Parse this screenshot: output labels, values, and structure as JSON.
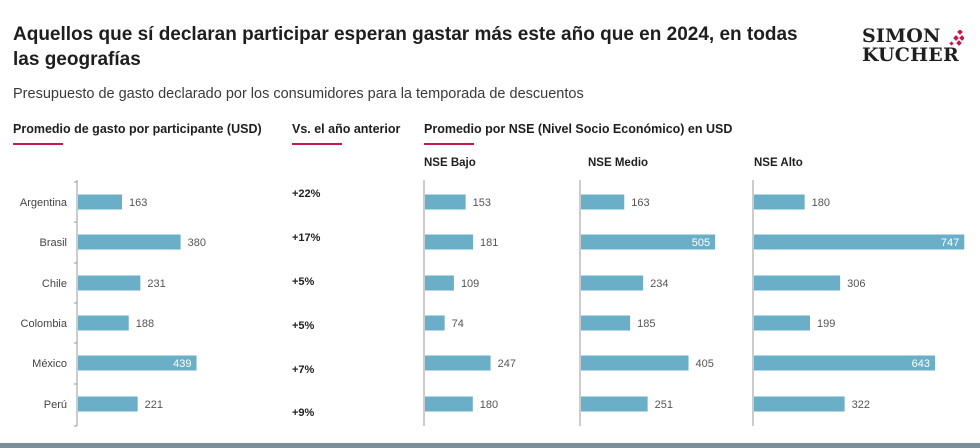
{
  "header": {
    "title": "Aquellos que sí declaran participar esperan gastar más este año que en 2024, en todas las geografías",
    "subtitle": "Presupuesto de gasto declarado por los consumidores para la temporada de descuentos",
    "logo_line1": "SIMON",
    "logo_line2": "KUCHER"
  },
  "sections": {
    "avg_spend": "Promedio de gasto por participante (USD)",
    "vs_prev_year": "Vs. el año anterior",
    "by_nse": "Promedio por NSE (Nivel Socio Económico) en USD"
  },
  "colors": {
    "bar": "#6aafc7",
    "accent": "#c8174a",
    "axis": "#9a9a9a",
    "label": "#555555",
    "footer": "#7c8e98"
  },
  "chart_data": [
    {
      "type": "bar",
      "orientation": "horizontal",
      "title": "Promedio de gasto por participante (USD)",
      "categories": [
        "Argentina",
        "Brasil",
        "Chile",
        "Colombia",
        "México",
        "Perú"
      ],
      "values": [
        163,
        380,
        231,
        188,
        439,
        221
      ],
      "change_vs_prev_year": [
        "+22%",
        "+17%",
        "+5%",
        "+5%",
        "+7%",
        "+9%"
      ],
      "xlabel": "",
      "ylabel": "",
      "grid": false
    },
    {
      "type": "bar",
      "orientation": "horizontal",
      "title": "Promedio por NSE (Nivel Socio Económico) en USD",
      "categories": [
        "Argentina",
        "Brasil",
        "Chile",
        "Colombia",
        "México",
        "Perú"
      ],
      "series": [
        {
          "name": "NSE Bajo",
          "values": [
            153,
            181,
            109,
            74,
            247,
            180
          ]
        },
        {
          "name": "NSE Medio",
          "values": [
            163,
            505,
            234,
            185,
            405,
            251
          ]
        },
        {
          "name": "NSE Alto",
          "values": [
            180,
            747,
            306,
            199,
            643,
            322
          ]
        }
      ],
      "grid": false
    }
  ]
}
